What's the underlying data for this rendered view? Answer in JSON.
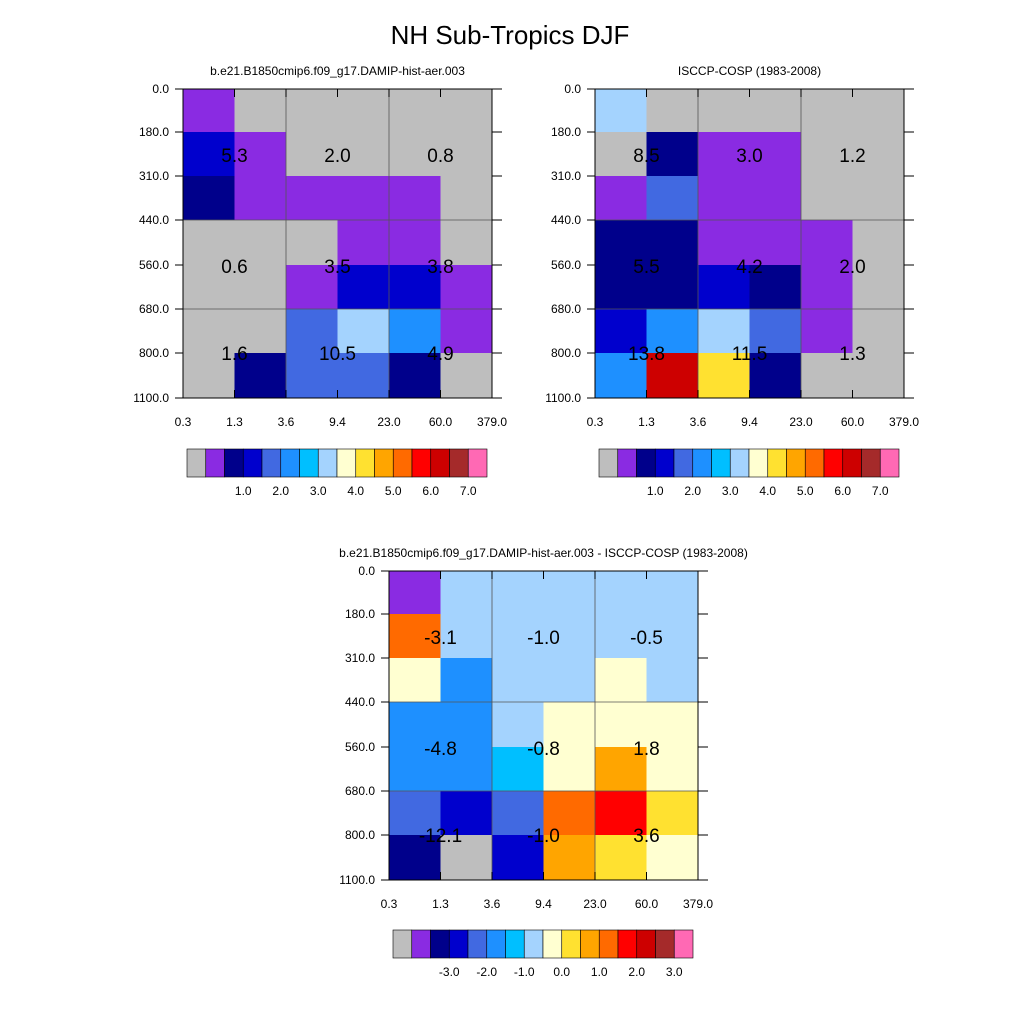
{
  "title": "NH Sub-Tropics DJF",
  "palette": [
    "#BEBEBE",
    "#8A2BE2",
    "#00008B",
    "#0000CD",
    "#4169E1",
    "#1E90FF",
    "#00BFFF",
    "#A4D3FE",
    "#FFFFD1",
    "#FFE130",
    "#FFA500",
    "#FF6A00",
    "#FF0000",
    "#CD0000",
    "#A52A2A",
    "#FF69B4"
  ],
  "chart_data": [
    {
      "type": "heatmap",
      "title": "b.e21.B1850cmip6.f09_g17.DAMIP-hist-aer.003",
      "x_ticks": [
        "0.3",
        "1.3",
        "3.6",
        "9.4",
        "23.0",
        "60.0",
        "379.0"
      ],
      "y_ticks": [
        "0.0",
        "180.0",
        "310.0",
        "440.0",
        "560.0",
        "680.0",
        "800.0",
        "1100.0"
      ],
      "colorbar_labels": [
        "1.0",
        "2.0",
        "3.0",
        "4.0",
        "5.0",
        "6.0",
        "7.0"
      ],
      "cells": [
        [
          1,
          0,
          0,
          0,
          0,
          0
        ],
        [
          3,
          1,
          0,
          0,
          0,
          0
        ],
        [
          2,
          1,
          1,
          1,
          1,
          0
        ],
        [
          0,
          0,
          0,
          1,
          1,
          0
        ],
        [
          0,
          0,
          1,
          3,
          3,
          1
        ],
        [
          0,
          0,
          4,
          7,
          5,
          1
        ],
        [
          0,
          2,
          4,
          4,
          2,
          0
        ]
      ],
      "box_labels": [
        [
          "5.3",
          "2.0",
          "0.8"
        ],
        [
          "0.6",
          "3.5",
          "3.8"
        ],
        [
          "1.6",
          "10.5",
          "4.9"
        ]
      ]
    },
    {
      "type": "heatmap",
      "title": "ISCCP-COSP (1983-2008)",
      "x_ticks": [
        "0.3",
        "1.3",
        "3.6",
        "9.4",
        "23.0",
        "60.0",
        "379.0"
      ],
      "y_ticks": [
        "0.0",
        "180.0",
        "310.0",
        "440.0",
        "560.0",
        "680.0",
        "800.0",
        "1100.0"
      ],
      "colorbar_labels": [
        "1.0",
        "2.0",
        "3.0",
        "4.0",
        "5.0",
        "6.0",
        "7.0"
      ],
      "cells": [
        [
          7,
          0,
          0,
          0,
          0,
          0
        ],
        [
          0,
          2,
          1,
          1,
          0,
          0
        ],
        [
          1,
          4,
          1,
          1,
          0,
          0
        ],
        [
          2,
          2,
          1,
          1,
          1,
          0
        ],
        [
          2,
          2,
          3,
          2,
          1,
          0
        ],
        [
          3,
          5,
          7,
          4,
          1,
          0
        ],
        [
          5,
          13,
          9,
          2,
          0,
          0
        ]
      ],
      "box_labels": [
        [
          "8.5",
          "3.0",
          "1.2"
        ],
        [
          "5.5",
          "4.2",
          "2.0"
        ],
        [
          "13.8",
          "11.5",
          "1.3"
        ]
      ]
    },
    {
      "type": "heatmap",
      "title": "b.e21.B1850cmip6.f09_g17.DAMIP-hist-aer.003 - ISCCP-COSP (1983-2008)",
      "x_ticks": [
        "0.3",
        "1.3",
        "3.6",
        "9.4",
        "23.0",
        "60.0",
        "379.0"
      ],
      "y_ticks": [
        "0.0",
        "180.0",
        "310.0",
        "440.0",
        "560.0",
        "680.0",
        "800.0",
        "1100.0"
      ],
      "colorbar_labels": [
        "-3.0",
        "-2.0",
        "-1.0",
        "0.0",
        "1.0",
        "2.0",
        "3.0"
      ],
      "cells": [
        [
          1,
          7,
          7,
          7,
          7,
          7
        ],
        [
          11,
          7,
          7,
          7,
          7,
          7
        ],
        [
          8,
          5,
          7,
          7,
          8,
          7
        ],
        [
          5,
          5,
          7,
          8,
          8,
          8
        ],
        [
          5,
          5,
          6,
          8,
          10,
          8
        ],
        [
          4,
          3,
          4,
          11,
          12,
          9
        ],
        [
          2,
          0,
          3,
          10,
          9,
          8
        ]
      ],
      "box_labels": [
        [
          "-3.1",
          "-1.0",
          "-0.5"
        ],
        [
          "-4.8",
          "-0.8",
          "1.8"
        ],
        [
          "-12.1",
          "-1.0",
          "3.6"
        ]
      ]
    }
  ]
}
